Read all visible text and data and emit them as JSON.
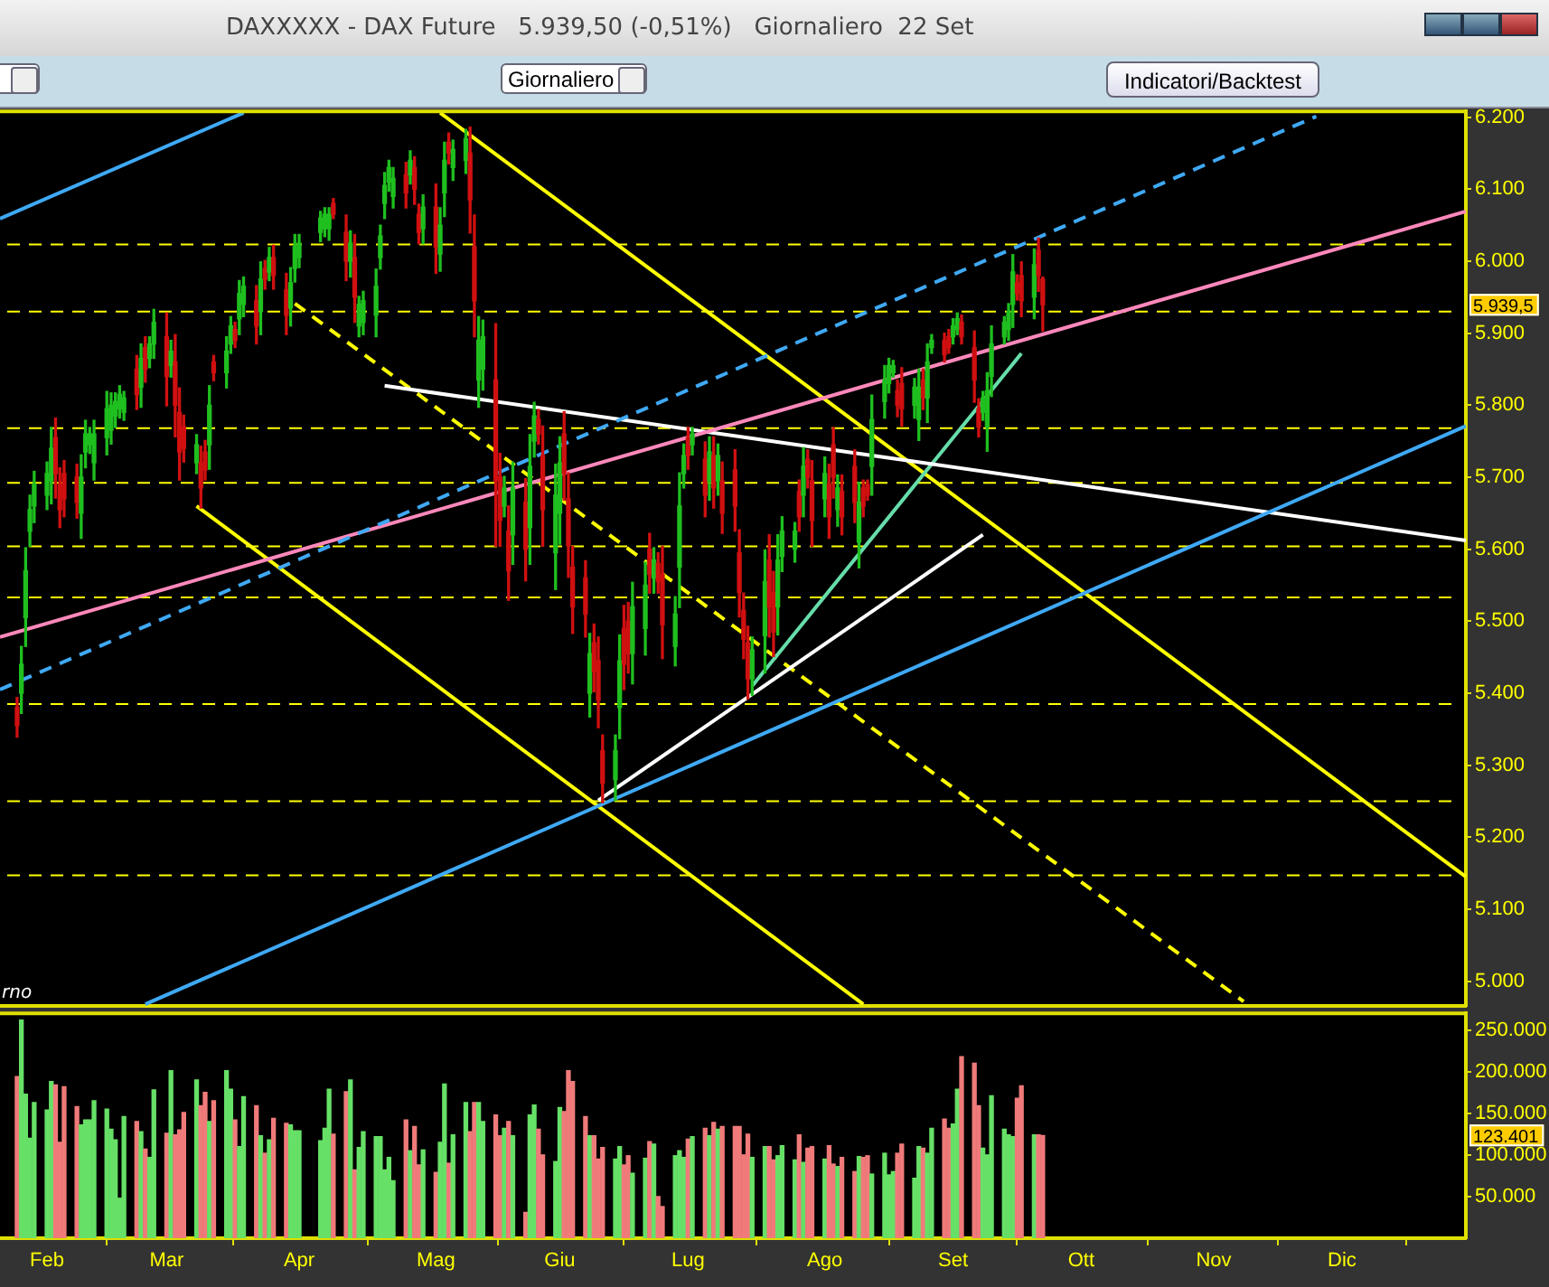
{
  "chart_data": [
    {
      "type": "candlestick",
      "title": "DAXXXXX - DAX Future   5.939,50 (-0,51%)   Giornaliero  22 Set",
      "x": [
        "--01-25",
        "--01-26",
        "--01-27",
        "--01-28",
        "--01-29",
        "--02-01",
        "--02-02",
        "--02-03",
        "--02-04",
        "--02-05",
        "--02-08",
        "--02-09",
        "--02-10",
        "--02-11",
        "--02-12",
        "--02-15",
        "--02-16",
        "--02-17",
        "--02-18",
        "--02-19",
        "--02-22",
        "--02-23",
        "--02-24",
        "--02-25",
        "--02-26",
        "--03-01",
        "--03-02",
        "--03-03",
        "--03-04",
        "--03-05",
        "--03-08",
        "--03-09",
        "--03-10",
        "--03-11",
        "--03-12",
        "--03-15",
        "--03-16",
        "--03-17",
        "--03-18",
        "--03-19",
        "--03-22",
        "--03-23",
        "--03-24",
        "--03-25",
        "--03-26",
        "--03-29",
        "--03-30",
        "--03-31",
        "--04-01",
        "--04-06",
        "--04-07",
        "--04-08",
        "--04-09",
        "--04-12",
        "--04-13",
        "--04-14",
        "--04-15",
        "--04-16",
        "--04-19",
        "--04-20",
        "--04-21",
        "--04-22",
        "--04-23",
        "--04-26",
        "--04-27",
        "--04-28",
        "--04-29",
        "--04-30",
        "--05-03",
        "--05-04",
        "--05-05",
        "--05-06",
        "--05-07",
        "--05-10",
        "--05-11",
        "--05-12",
        "--05-13",
        "--05-14",
        "--05-17",
        "--05-18",
        "--05-19",
        "--05-20",
        "--05-21",
        "--05-24",
        "--05-25",
        "--05-26",
        "--05-27",
        "--05-28",
        "--05-31",
        "--06-01",
        "--06-02",
        "--06-03",
        "--06-04",
        "--06-07",
        "--06-08",
        "--06-09",
        "--06-10",
        "--06-11",
        "--06-14",
        "--06-15",
        "--06-16",
        "--06-17",
        "--06-18",
        "--06-21",
        "--06-22",
        "--06-23",
        "--06-24",
        "--06-25",
        "--06-28",
        "--06-29",
        "--06-30",
        "--07-01",
        "--07-02",
        "--07-05",
        "--07-06",
        "--07-07",
        "--07-08",
        "--07-09",
        "--07-12",
        "--07-13",
        "--07-14",
        "--07-15",
        "--07-16",
        "--07-19",
        "--07-20",
        "--07-21",
        "--07-22",
        "--07-23",
        "--07-26",
        "--07-27",
        "--07-28",
        "--07-29",
        "--07-30",
        "--08-02",
        "--08-03",
        "--08-04",
        "--08-05",
        "--08-06",
        "--08-09",
        "--08-10",
        "--08-11",
        "--08-12",
        "--08-13",
        "--08-16",
        "--08-17",
        "--08-18",
        "--08-19",
        "--08-20",
        "--08-23",
        "--08-24",
        "--08-25",
        "--08-26",
        "--08-27",
        "--08-30",
        "--08-31",
        "--09-01",
        "--09-02",
        "--09-03",
        "--09-06",
        "--09-07",
        "--09-08",
        "--09-09",
        "--09-10",
        "--09-13",
        "--09-14",
        "--09-15",
        "--09-16",
        "--09-17",
        "--09-20",
        "--09-21",
        "--09-22"
      ],
      "ohlc": [
        [
          5380,
          5394,
          5339,
          5355
        ],
        [
          5400,
          5465,
          5372,
          5440
        ],
        [
          5505,
          5602,
          5465,
          5570
        ],
        [
          5625,
          5675,
          5604,
          5655
        ],
        [
          5660,
          5708,
          5637,
          5690
        ],
        [
          5675,
          5721,
          5655,
          5705
        ],
        [
          5695,
          5769,
          5663,
          5740
        ],
        [
          5755,
          5782,
          5671,
          5705
        ],
        [
          5690,
          5713,
          5630,
          5655
        ],
        [
          5705,
          5723,
          5645,
          5670
        ],
        [
          5700,
          5718,
          5643,
          5665
        ],
        [
          5650,
          5731,
          5615,
          5700
        ],
        [
          5735,
          5779,
          5713,
          5760
        ],
        [
          5745,
          5769,
          5733,
          5760
        ],
        [
          5720,
          5779,
          5696,
          5760
        ],
        [
          5755,
          5819,
          5731,
          5795
        ],
        [
          5765,
          5817,
          5746,
          5800
        ],
        [
          5785,
          5817,
          5769,
          5805
        ],
        [
          5795,
          5827,
          5782,
          5815
        ],
        [
          5790,
          5819,
          5779,
          5810
        ],
        [
          5850,
          5869,
          5794,
          5815
        ],
        [
          5825,
          5885,
          5797,
          5865
        ],
        [
          5880,
          5895,
          5832,
          5850
        ],
        [
          5865,
          5895,
          5852,
          5885
        ],
        [
          5885,
          5933,
          5865,
          5915
        ],
        [
          5895,
          5928,
          5799,
          5840
        ],
        [
          5855,
          5890,
          5839,
          5875
        ],
        [
          5860,
          5898,
          5756,
          5800
        ],
        [
          5790,
          5824,
          5696,
          5735
        ],
        [
          5770,
          5786,
          5721,
          5740
        ],
        [
          5720,
          5759,
          5705,
          5745
        ],
        [
          5720,
          5743,
          5657,
          5685
        ],
        [
          5735,
          5751,
          5696,
          5710
        ],
        [
          5745,
          5827,
          5711,
          5800
        ],
        [
          5860,
          5869,
          5834,
          5845
        ],
        [
          5845,
          5895,
          5824,
          5875
        ],
        [
          5885,
          5923,
          5872,
          5910
        ],
        [
          5905,
          5915,
          5880,
          5890
        ],
        [
          5920,
          5973,
          5898,
          5955
        ],
        [
          5940,
          5978,
          5923,
          5965
        ],
        [
          5945,
          5966,
          5885,
          5910
        ],
        [
          5930,
          5999,
          5898,
          5975
        ],
        [
          5990,
          6001,
          5961,
          5975
        ],
        [
          5985,
          6019,
          5973,
          6005
        ],
        [
          6005,
          6022,
          5961,
          5980
        ],
        [
          5960,
          5983,
          5898,
          5925
        ],
        [
          5935,
          5991,
          5910,
          5970
        ],
        [
          5990,
          6037,
          5971,
          6020
        ],
        [
          6005,
          6037,
          5991,
          6025
        ],
        [
          6040,
          6069,
          6027,
          6060
        ],
        [
          6045,
          6074,
          6034,
          6065
        ],
        [
          6045,
          6074,
          6029,
          6065
        ],
        [
          6080,
          6087,
          6059,
          6065
        ],
        [
          6040,
          6064,
          5973,
          6000
        ],
        [
          6000,
          6042,
          5978,
          6025
        ],
        [
          6005,
          6037,
          5915,
          5950
        ],
        [
          5910,
          5951,
          5895,
          5940
        ],
        [
          5915,
          5958,
          5898,
          5945
        ],
        [
          5925,
          5989,
          5895,
          5965
        ],
        [
          6005,
          6050,
          5989,
          6035
        ],
        [
          6080,
          6123,
          6059,
          6105
        ],
        [
          6110,
          6140,
          6097,
          6130
        ],
        [
          6090,
          6130,
          6074,
          6115
        ],
        [
          6120,
          6137,
          6074,
          6095
        ],
        [
          6120,
          6153,
          6107,
          6140
        ],
        [
          6130,
          6145,
          6079,
          6100
        ],
        [
          6065,
          6079,
          6024,
          6040
        ],
        [
          6045,
          6092,
          6024,
          6075
        ],
        [
          6075,
          6107,
          5983,
          6020
        ],
        [
          6010,
          6074,
          5986,
          6050
        ],
        [
          6095,
          6165,
          6062,
          6140
        ],
        [
          6165,
          6178,
          6135,
          6150
        ],
        [
          6130,
          6168,
          6112,
          6155
        ],
        [
          6140,
          6183,
          6122,
          6170
        ],
        [
          6150,
          6186,
          6039,
          6085
        ],
        [
          6020,
          6064,
          5895,
          5945
        ],
        [
          5835,
          5923,
          5797,
          5890
        ],
        [
          5850,
          5918,
          5821,
          5895
        ],
        [
          5835,
          5913,
          5604,
          5695
        ],
        [
          5700,
          5733,
          5604,
          5640
        ],
        [
          5660,
          5701,
          5645,
          5685
        ],
        [
          5625,
          5660,
          5529,
          5570
        ],
        [
          5620,
          5721,
          5579,
          5685
        ],
        [
          5665,
          5698,
          5556,
          5600
        ],
        [
          5630,
          5759,
          5579,
          5715
        ],
        [
          5750,
          5804,
          5728,
          5785
        ],
        [
          5780,
          5794,
          5746,
          5760
        ],
        [
          5730,
          5771,
          5604,
          5655
        ],
        [
          5595,
          5718,
          5544,
          5675
        ],
        [
          5650,
          5756,
          5607,
          5720
        ],
        [
          5760,
          5791,
          5668,
          5705
        ],
        [
          5670,
          5706,
          5561,
          5605
        ],
        [
          5575,
          5604,
          5483,
          5520
        ],
        [
          5560,
          5584,
          5478,
          5510
        ],
        [
          5400,
          5483,
          5367,
          5455
        ],
        [
          5470,
          5496,
          5402,
          5430
        ],
        [
          5445,
          5478,
          5352,
          5390
        ],
        [
          5320,
          5342,
          5248,
          5275
        ],
        [
          5280,
          5342,
          5251,
          5320
        ],
        [
          5380,
          5481,
          5337,
          5445
        ],
        [
          5490,
          5522,
          5405,
          5440
        ],
        [
          5500,
          5526,
          5428,
          5455
        ],
        [
          5455,
          5554,
          5413,
          5520
        ],
        [
          5490,
          5582,
          5453,
          5550
        ],
        [
          5600,
          5622,
          5539,
          5565
        ],
        [
          5560,
          5602,
          5539,
          5585
        ],
        [
          5580,
          5595,
          5539,
          5555
        ],
        [
          5565,
          5604,
          5448,
          5495
        ],
        [
          5465,
          5534,
          5438,
          5510
        ],
        [
          5575,
          5706,
          5519,
          5660
        ],
        [
          5705,
          5746,
          5685,
          5730
        ],
        [
          5755,
          5769,
          5711,
          5730
        ],
        [
          5745,
          5769,
          5731,
          5760
        ],
        [
          5725,
          5749,
          5645,
          5675
        ],
        [
          5695,
          5756,
          5668,
          5735
        ],
        [
          5730,
          5756,
          5657,
          5685
        ],
        [
          5695,
          5746,
          5675,
          5730
        ],
        [
          5695,
          5721,
          5622,
          5650
        ],
        [
          5710,
          5738,
          5625,
          5660
        ],
        [
          5595,
          5627,
          5506,
          5540
        ],
        [
          5515,
          5539,
          5448,
          5475
        ],
        [
          5470,
          5493,
          5392,
          5420
        ],
        [
          5420,
          5478,
          5397,
          5460
        ],
        [
          5480,
          5599,
          5428,
          5555
        ],
        [
          5585,
          5620,
          5478,
          5520
        ],
        [
          5540,
          5569,
          5451,
          5485
        ],
        [
          5520,
          5620,
          5481,
          5585
        ],
        [
          5590,
          5645,
          5569,
          5625
        ],
        [
          5600,
          5637,
          5582,
          5625
        ],
        [
          5680,
          5696,
          5625,
          5645
        ],
        [
          5675,
          5741,
          5645,
          5715
        ],
        [
          5725,
          5738,
          5685,
          5700
        ],
        [
          5695,
          5723,
          5604,
          5640
        ],
        [
          5670,
          5728,
          5645,
          5705
        ],
        [
          5690,
          5718,
          5615,
          5645
        ],
        [
          5745,
          5769,
          5671,
          5700
        ],
        [
          5655,
          5703,
          5632,
          5685
        ],
        [
          5680,
          5703,
          5620,
          5645
        ],
        [
          5715,
          5738,
          5637,
          5665
        ],
        [
          5610,
          5693,
          5574,
          5665
        ],
        [
          5685,
          5696,
          5645,
          5660
        ],
        [
          5690,
          5696,
          5668,
          5675
        ],
        [
          5715,
          5814,
          5675,
          5780
        ],
        [
          5805,
          5855,
          5782,
          5835
        ],
        [
          5830,
          5865,
          5817,
          5855
        ],
        [
          5845,
          5862,
          5839,
          5855
        ],
        [
          5820,
          5835,
          5784,
          5800
        ],
        [
          5830,
          5852,
          5771,
          5795
        ],
        [
          5800,
          5837,
          5782,
          5825
        ],
        [
          5780,
          5850,
          5751,
          5825
        ],
        [
          5835,
          5850,
          5794,
          5810
        ],
        [
          5810,
          5885,
          5776,
          5860
        ],
        [
          5880,
          5898,
          5872,
          5890
        ],
        [
          5890,
          5900,
          5860,
          5870
        ],
        [
          5895,
          5905,
          5872,
          5880
        ],
        [
          5895,
          5920,
          5885,
          5910
        ],
        [
          5905,
          5928,
          5898,
          5920
        ],
        [
          5915,
          5925,
          5885,
          5895
        ],
        [
          5880,
          5903,
          5804,
          5835
        ],
        [
          5795,
          5809,
          5756,
          5770
        ],
        [
          5790,
          5819,
          5779,
          5810
        ],
        [
          5770,
          5845,
          5736,
          5820
        ],
        [
          5840,
          5910,
          5812,
          5885
        ],
        [
          5895,
          5923,
          5885,
          5915
        ],
        [
          5905,
          5941,
          5890,
          5930
        ],
        [
          5940,
          6009,
          5908,
          5985
        ],
        [
          5970,
          5981,
          5946,
          5955
        ],
        [
          5980,
          5999,
          5923,
          5945
        ],
        [
          5950,
          6017,
          5920,
          5995
        ],
        [
          6015,
          6032,
          5958,
          5980
        ],
        [
          5975,
          5978,
          5903,
          5939.5
        ]
      ],
      "colors": [
        "#d01010",
        "#1fbf1f",
        "#1fbf1f",
        "#1fbf1f",
        "#1fbf1f",
        "#1fbf1f",
        "#1fbf1f",
        "#d01010",
        "#d01010",
        "#d01010",
        "#d01010",
        "#1fbf1f",
        "#1fbf1f",
        "#1fbf1f",
        "#1fbf1f",
        "#1fbf1f",
        "#1fbf1f",
        "#1fbf1f",
        "#1fbf1f",
        "#1fbf1f",
        "#d01010",
        "#1fbf1f",
        "#d01010",
        "#1fbf1f",
        "#1fbf1f",
        "#d01010",
        "#1fbf1f",
        "#d01010",
        "#d01010",
        "#d01010",
        "#1fbf1f",
        "#d01010",
        "#d01010",
        "#1fbf1f",
        "#d01010",
        "#1fbf1f",
        "#1fbf1f",
        "#d01010",
        "#1fbf1f",
        "#1fbf1f",
        "#d01010",
        "#1fbf1f",
        "#d01010",
        "#1fbf1f",
        "#d01010",
        "#d01010",
        "#1fbf1f",
        "#1fbf1f",
        "#1fbf1f",
        "#1fbf1f",
        "#1fbf1f",
        "#1fbf1f",
        "#d01010",
        "#d01010",
        "#1fbf1f",
        "#d01010",
        "#1fbf1f",
        "#1fbf1f",
        "#1fbf1f",
        "#1fbf1f",
        "#1fbf1f",
        "#1fbf1f",
        "#1fbf1f",
        "#d01010",
        "#1fbf1f",
        "#d01010",
        "#d01010",
        "#1fbf1f",
        "#d01010",
        "#1fbf1f",
        "#1fbf1f",
        "#d01010",
        "#1fbf1f",
        "#1fbf1f",
        "#d01010",
        "#d01010",
        "#1fbf1f",
        "#1fbf1f",
        "#d01010",
        "#d01010",
        "#1fbf1f",
        "#d01010",
        "#1fbf1f",
        "#d01010",
        "#1fbf1f",
        "#1fbf1f",
        "#d01010",
        "#d01010",
        "#1fbf1f",
        "#1fbf1f",
        "#d01010",
        "#d01010",
        "#d01010",
        "#d01010",
        "#1fbf1f",
        "#d01010",
        "#d01010",
        "#d01010",
        "#1fbf1f",
        "#1fbf1f",
        "#d01010",
        "#d01010",
        "#1fbf1f",
        "#1fbf1f",
        "#d01010",
        "#1fbf1f",
        "#d01010",
        "#d01010",
        "#1fbf1f",
        "#1fbf1f",
        "#1fbf1f",
        "#d01010",
        "#1fbf1f",
        "#d01010",
        "#1fbf1f",
        "#d01010",
        "#1fbf1f",
        "#d01010",
        "#d01010",
        "#d01010",
        "#d01010",
        "#d01010",
        "#1fbf1f",
        "#1fbf1f",
        "#d01010",
        "#d01010",
        "#1fbf1f",
        "#1fbf1f",
        "#1fbf1f",
        "#d01010",
        "#1fbf1f",
        "#d01010",
        "#d01010",
        "#1fbf1f",
        "#d01010",
        "#d01010",
        "#1fbf1f",
        "#d01010",
        "#d01010",
        "#1fbf1f",
        "#d01010",
        "#d01010",
        "#1fbf1f",
        "#1fbf1f",
        "#1fbf1f",
        "#1fbf1f",
        "#d01010",
        "#d01010",
        "#1fbf1f",
        "#1fbf1f",
        "#d01010",
        "#1fbf1f",
        "#1fbf1f",
        "#d01010",
        "#d01010",
        "#1fbf1f",
        "#1fbf1f",
        "#d01010",
        "#d01010",
        "#d01010",
        "#1fbf1f",
        "#1fbf1f",
        "#1fbf1f",
        "#1fbf1f",
        "#1fbf1f",
        "#1fbf1f",
        "#d01010",
        "#d01010",
        "#1fbf1f",
        "#d01010",
        "#d01010"
      ],
      "series": [
        {
          "type": "line",
          "color": "#3fa9f5",
          "line_style": "solid",
          "x": [
            "--01-21",
            "--03-19"
          ],
          "values": [
            6059,
            6206
          ]
        },
        {
          "type": "line",
          "color": "#3fa9f5",
          "line_style": "solid",
          "x": [
            "--02-24",
            "--12-30"
          ],
          "values": [
            4968,
            5771
          ]
        },
        {
          "type": "line",
          "color": "#3fa9f5",
          "line_style": "dashed",
          "x": [
            "--01-21",
            "--11-25"
          ],
          "values": [
            5405,
            6201
          ]
        },
        {
          "type": "line",
          "color": "#ff88bb",
          "line_style": "solid",
          "x": [
            "--01-21",
            "--12-30"
          ],
          "values": [
            5478,
            6069
          ]
        },
        {
          "type": "line",
          "color": "#ffffff",
          "line_style": "solid",
          "x": [
            "--04-21",
            "--12-30"
          ],
          "values": [
            5827,
            5612
          ]
        },
        {
          "type": "line",
          "color": "#ffffff",
          "line_style": "solid",
          "x": [
            "--06-10",
            "--09-08"
          ],
          "values": [
            5251,
            5620
          ]
        },
        {
          "type": "line",
          "color": "#66ddaa",
          "line_style": "solid",
          "x": [
            "--07-16",
            "--09-17"
          ],
          "values": [
            5410,
            5872
          ]
        },
        {
          "type": "line",
          "color": "#ffff00",
          "line_style": "solid",
          "x": [
            "--05-04",
            "--12-30"
          ],
          "values": [
            6206,
            5145
          ]
        },
        {
          "type": "line",
          "color": "#ffff00",
          "line_style": "solid",
          "x": [
            "--03-08",
            "--08-11"
          ],
          "values": [
            5660,
            4968
          ]
        },
        {
          "type": "line",
          "color": "#ffff00",
          "line_style": "dashed",
          "x": [
            "--03-31",
            "--11-08"
          ],
          "values": [
            5941,
            4972
          ]
        }
      ],
      "ref_lines": [
        {
          "axis": "y",
          "value": 6023,
          "color": "#ffff00",
          "line_style": "dashed"
        },
        {
          "axis": "y",
          "value": 5930,
          "color": "#ffff00",
          "line_style": "dashed"
        },
        {
          "axis": "y",
          "value": 5768,
          "color": "#ffff00",
          "line_style": "dashed"
        },
        {
          "axis": "y",
          "value": 5692,
          "color": "#ffff00",
          "line_style": "dashed"
        },
        {
          "axis": "y",
          "value": 5604,
          "color": "#ffff00",
          "line_style": "dashed"
        },
        {
          "axis": "y",
          "value": 5533,
          "color": "#ffff00",
          "line_style": "dashed"
        },
        {
          "axis": "y",
          "value": 5385,
          "color": "#ffff00",
          "line_style": "dashed"
        },
        {
          "axis": "y",
          "value": 5250,
          "color": "#ffff00",
          "line_style": "dashed"
        },
        {
          "axis": "y",
          "value": 5147,
          "color": "#ffff00",
          "line_style": "dashed"
        }
      ],
      "annotations": [
        "Giornaliero",
        "Indicatori/Backtest",
        "rno",
        "5.939,5"
      ],
      "xlim": [
        "--01-21",
        "--12-30"
      ],
      "xticks": [
        {
          "value": "--02-01",
          "label": "Feb"
        },
        {
          "value": "--03-01",
          "label": "Mar"
        },
        {
          "value": "--04-01",
          "label": "Apr"
        },
        {
          "value": "--05-03",
          "label": "Mag"
        },
        {
          "value": "--06-01",
          "label": "Giu"
        },
        {
          "value": "--07-01",
          "label": "Lug"
        },
        {
          "value": "--08-02",
          "label": "Ago"
        },
        {
          "value": "--09-01",
          "label": "Set"
        },
        {
          "value": "--10-01",
          "label": "Ott"
        },
        {
          "value": "--11-01",
          "label": "Nov"
        },
        {
          "value": "--12-01",
          "label": "Dic"
        }
      ],
      "ylim": [
        4966,
        6208
      ],
      "yticks": [
        {
          "value": 5000,
          "label": "5.000"
        },
        {
          "value": 5100,
          "label": "5.100"
        },
        {
          "value": 5200,
          "label": "5.200"
        },
        {
          "value": 5300,
          "label": "5.300"
        },
        {
          "value": 5400,
          "label": "5.400"
        },
        {
          "value": 5500,
          "label": "5.500"
        },
        {
          "value": 5600,
          "label": "5.600"
        },
        {
          "value": 5700,
          "label": "5.700"
        },
        {
          "value": 5800,
          "label": "5.800"
        },
        {
          "value": 5900,
          "label": "5.900"
        },
        {
          "value": 6000,
          "label": "6.000"
        },
        {
          "value": 6100,
          "label": "6.100"
        },
        {
          "value": 6200,
          "label": "6.200"
        }
      ],
      "tick_labels": "y"
    },
    {
      "type": "bar",
      "x": [
        "--01-25",
        "--01-26",
        "--01-27",
        "--01-28",
        "--01-29",
        "--02-01",
        "--02-02",
        "--02-03",
        "--02-04",
        "--02-05",
        "--02-08",
        "--02-09",
        "--02-10",
        "--02-11",
        "--02-12",
        "--02-15",
        "--02-16",
        "--02-17",
        "--02-18",
        "--02-19",
        "--02-22",
        "--02-23",
        "--02-24",
        "--02-25",
        "--02-26",
        "--03-01",
        "--03-02",
        "--03-03",
        "--03-04",
        "--03-05",
        "--03-08",
        "--03-09",
        "--03-10",
        "--03-11",
        "--03-12",
        "--03-15",
        "--03-16",
        "--03-17",
        "--03-18",
        "--03-19",
        "--03-22",
        "--03-23",
        "--03-24",
        "--03-25",
        "--03-26",
        "--03-29",
        "--03-30",
        "--03-31",
        "--04-01",
        "--04-06",
        "--04-07",
        "--04-08",
        "--04-09",
        "--04-12",
        "--04-13",
        "--04-14",
        "--04-15",
        "--04-16",
        "--04-19",
        "--04-20",
        "--04-21",
        "--04-22",
        "--04-23",
        "--04-26",
        "--04-27",
        "--04-28",
        "--04-29",
        "--04-30",
        "--05-03",
        "--05-04",
        "--05-05",
        "--05-06",
        "--05-07",
        "--05-10",
        "--05-11",
        "--05-12",
        "--05-13",
        "--05-14",
        "--05-17",
        "--05-18",
        "--05-19",
        "--05-20",
        "--05-21",
        "--05-24",
        "--05-25",
        "--05-26",
        "--05-27",
        "--05-28",
        "--05-31",
        "--06-01",
        "--06-02",
        "--06-03",
        "--06-04",
        "--06-07",
        "--06-08",
        "--06-09",
        "--06-10",
        "--06-11",
        "--06-14",
        "--06-15",
        "--06-16",
        "--06-17",
        "--06-18",
        "--06-21",
        "--06-22",
        "--06-23",
        "--06-24",
        "--06-25",
        "--06-28",
        "--06-29",
        "--06-30",
        "--07-01",
        "--07-02",
        "--07-05",
        "--07-06",
        "--07-07",
        "--07-08",
        "--07-09",
        "--07-12",
        "--07-13",
        "--07-14",
        "--07-15",
        "--07-16",
        "--07-19",
        "--07-20",
        "--07-21",
        "--07-22",
        "--07-23",
        "--07-26",
        "--07-27",
        "--07-28",
        "--07-29",
        "--07-30",
        "--08-02",
        "--08-03",
        "--08-04",
        "--08-05",
        "--08-06",
        "--08-09",
        "--08-10",
        "--08-11",
        "--08-12",
        "--08-13",
        "--08-16",
        "--08-17",
        "--08-18",
        "--08-19",
        "--08-20",
        "--08-23",
        "--08-24",
        "--08-25",
        "--08-26",
        "--08-27",
        "--08-30",
        "--08-31",
        "--09-01",
        "--09-02",
        "--09-03",
        "--09-06",
        "--09-07",
        "--09-08",
        "--09-09",
        "--09-10",
        "--09-13",
        "--09-14",
        "--09-15",
        "--09-16",
        "--09-17",
        "--09-20",
        "--09-21",
        "--09-22"
      ],
      "values": [
        194000,
        262000,
        173000,
        120000,
        163000,
        154000,
        188000,
        184000,
        115000,
        182000,
        158000,
        136000,
        142000,
        142000,
        165000,
        155000,
        131000,
        118000,
        48000,
        146000,
        140000,
        128000,
        107000,
        97000,
        178000,
        126000,
        201000,
        124000,
        130000,
        151000,
        190000,
        159000,
        175000,
        140000,
        165000,
        201000,
        179000,
        142000,
        110000,
        170000,
        159000,
        123000,
        102000,
        118000,
        144000,
        138000,
        136000,
        129000,
        129000,
        117000,
        132000,
        179000,
        125000,
        176000,
        190000,
        82000,
        109000,
        128000,
        122000,
        122000,
        82000,
        97000,
        69000,
        142000,
        105000,
        134000,
        88000,
        106000,
        79000,
        115000,
        185000,
        90000,
        124000,
        163000,
        128000,
        163000,
        163000,
        140000,
        148000,
        123000,
        132000,
        140000,
        123000,
        31000,
        148000,
        160000,
        131000,
        100000,
        92000,
        157000,
        152000,
        201000,
        188000,
        146000,
        123000,
        123000,
        95000,
        109000,
        95000,
        110000,
        88000,
        99000,
        78000,
        96000,
        116000,
        113000,
        50000,
        38000,
        99000,
        105000,
        97000,
        119000,
        122000,
        132000,
        123000,
        139000,
        131000,
        134000,
        134000,
        134000,
        100000,
        125000,
        97000,
        110000,
        110000,
        94000,
        99000,
        111000,
        94000,
        124000,
        91000,
        108000,
        110000,
        95000,
        111000,
        89000,
        86000,
        97000,
        80000,
        98000,
        97000,
        99000,
        77000,
        102000,
        76000,
        80000,
        102000,
        113000,
        72000,
        110000,
        108000,
        102000,
        132000,
        143000,
        132000,
        137000,
        179000,
        218000,
        210000,
        159000,
        108000,
        100000,
        171000,
        131000,
        124000,
        122000,
        168000,
        183000,
        124000,
        124000,
        123401
      ],
      "colors": [
        "#f07a7a",
        "#66e066",
        "#66e066",
        "#66e066",
        "#66e066",
        "#66e066",
        "#66e066",
        "#f07a7a",
        "#f07a7a",
        "#f07a7a",
        "#f07a7a",
        "#66e066",
        "#66e066",
        "#66e066",
        "#66e066",
        "#66e066",
        "#66e066",
        "#66e066",
        "#66e066",
        "#66e066",
        "#f07a7a",
        "#66e066",
        "#f07a7a",
        "#66e066",
        "#66e066",
        "#f07a7a",
        "#66e066",
        "#f07a7a",
        "#f07a7a",
        "#f07a7a",
        "#66e066",
        "#f07a7a",
        "#f07a7a",
        "#66e066",
        "#f07a7a",
        "#66e066",
        "#66e066",
        "#f07a7a",
        "#66e066",
        "#66e066",
        "#f07a7a",
        "#66e066",
        "#f07a7a",
        "#66e066",
        "#f07a7a",
        "#f07a7a",
        "#66e066",
        "#66e066",
        "#66e066",
        "#66e066",
        "#66e066",
        "#66e066",
        "#f07a7a",
        "#f07a7a",
        "#66e066",
        "#f07a7a",
        "#66e066",
        "#66e066",
        "#66e066",
        "#66e066",
        "#66e066",
        "#66e066",
        "#66e066",
        "#f07a7a",
        "#66e066",
        "#f07a7a",
        "#f07a7a",
        "#66e066",
        "#f07a7a",
        "#66e066",
        "#66e066",
        "#f07a7a",
        "#66e066",
        "#66e066",
        "#f07a7a",
        "#f07a7a",
        "#66e066",
        "#66e066",
        "#f07a7a",
        "#f07a7a",
        "#66e066",
        "#f07a7a",
        "#66e066",
        "#f07a7a",
        "#66e066",
        "#66e066",
        "#f07a7a",
        "#f07a7a",
        "#66e066",
        "#66e066",
        "#f07a7a",
        "#f07a7a",
        "#f07a7a",
        "#f07a7a",
        "#66e066",
        "#f07a7a",
        "#f07a7a",
        "#f07a7a",
        "#66e066",
        "#66e066",
        "#f07a7a",
        "#f07a7a",
        "#66e066",
        "#66e066",
        "#f07a7a",
        "#66e066",
        "#f07a7a",
        "#f07a7a",
        "#66e066",
        "#66e066",
        "#66e066",
        "#f07a7a",
        "#66e066",
        "#f07a7a",
        "#66e066",
        "#f07a7a",
        "#66e066",
        "#f07a7a",
        "#f07a7a",
        "#f07a7a",
        "#f07a7a",
        "#f07a7a",
        "#66e066",
        "#66e066",
        "#f07a7a",
        "#f07a7a",
        "#66e066",
        "#66e066",
        "#66e066",
        "#f07a7a",
        "#66e066",
        "#f07a7a",
        "#f07a7a",
        "#66e066",
        "#f07a7a",
        "#f07a7a",
        "#66e066",
        "#f07a7a",
        "#f07a7a",
        "#66e066",
        "#f07a7a",
        "#f07a7a",
        "#66e066",
        "#66e066",
        "#66e066",
        "#66e066",
        "#f07a7a",
        "#f07a7a",
        "#66e066",
        "#66e066",
        "#f07a7a",
        "#66e066",
        "#66e066",
        "#f07a7a",
        "#f07a7a",
        "#66e066",
        "#66e066",
        "#f07a7a",
        "#f07a7a",
        "#f07a7a",
        "#66e066",
        "#66e066",
        "#66e066",
        "#66e066",
        "#66e066",
        "#66e066",
        "#f07a7a",
        "#f07a7a",
        "#66e066",
        "#f07a7a",
        "#f07a7a"
      ],
      "annotations": [
        "123.401"
      ],
      "xlim": [
        "--01-21",
        "--12-30"
      ],
      "xticks": [
        {
          "value": "--02-01",
          "label": "Feb"
        },
        {
          "value": "--03-01",
          "label": "Mar"
        },
        {
          "value": "--04-01",
          "label": "Apr"
        },
        {
          "value": "--05-03",
          "label": "Mag"
        },
        {
          "value": "--06-01",
          "label": "Giu"
        },
        {
          "value": "--07-01",
          "label": "Lug"
        },
        {
          "value": "--08-02",
          "label": "Ago"
        },
        {
          "value": "--09-01",
          "label": "Set"
        },
        {
          "value": "--10-01",
          "label": "Ott"
        },
        {
          "value": "--11-01",
          "label": "Nov"
        },
        {
          "value": "--12-01",
          "label": "Dic"
        }
      ],
      "ylim": [
        0,
        270000
      ],
      "yticks": [
        {
          "value": 50000,
          "label": "50.000"
        },
        {
          "value": 100000,
          "label": "100.000"
        },
        {
          "value": 150000,
          "label": "150.000"
        },
        {
          "value": 200000,
          "label": "200.000"
        },
        {
          "value": 250000,
          "label": "250.000"
        }
      ]
    }
  ]
}
